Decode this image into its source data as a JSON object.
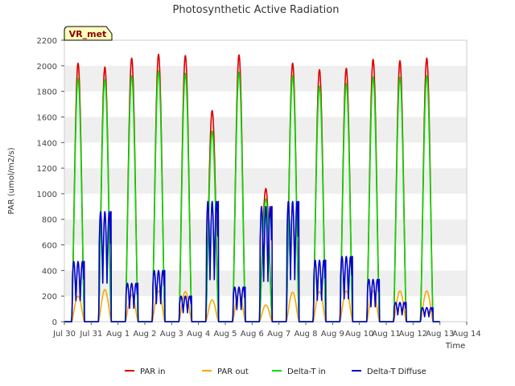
{
  "chart_data": {
    "type": "line",
    "title": "Photosynthetic Active Radiation",
    "badge": "VR_met",
    "xlabel": "Time",
    "ylabel": "PAR (umol/m2/s)",
    "ylim": [
      0,
      2200
    ],
    "yticks": [
      0,
      200,
      400,
      600,
      800,
      1000,
      1200,
      1400,
      1600,
      1800,
      2000,
      2200
    ],
    "xlim": [
      "2024-07-30",
      "2024-08-14"
    ],
    "xticks": [
      "Jul 30",
      "Jul 31",
      "Aug 1",
      "Aug 2",
      "Aug 3",
      "Aug 4",
      "Aug 5",
      "Aug 6",
      "Aug 7",
      "Aug 8",
      "Aug 9",
      "Aug 10",
      "Aug 11",
      "Aug 12",
      "Aug 13",
      "Aug 14"
    ],
    "grid": "horizontal bands",
    "legend_position": "bottom",
    "day_labels": [
      "Jul 30",
      "Jul 31",
      "Aug 1",
      "Aug 2",
      "Aug 3",
      "Aug 4",
      "Aug 5",
      "Aug 6",
      "Aug 7",
      "Aug 8",
      "Aug 9",
      "Aug 10",
      "Aug 11",
      "Aug 12",
      "Aug 13"
    ],
    "series": [
      {
        "name": "PAR in",
        "color": "#dd0000",
        "daily_peak": [
          2020,
          1990,
          2060,
          2090,
          2080,
          1650,
          2085,
          1040,
          2020,
          1970,
          1980,
          2050,
          2040,
          2060,
          0
        ]
      },
      {
        "name": "PAR out",
        "color": "#ffa500",
        "daily_peak": [
          200,
          250,
          210,
          240,
          235,
          170,
          235,
          130,
          230,
          235,
          240,
          240,
          240,
          240,
          0
        ]
      },
      {
        "name": "Delta-T in",
        "color": "#00dd00",
        "daily_peak": [
          1900,
          1890,
          1920,
          1960,
          1940,
          1490,
          1950,
          960,
          1920,
          1840,
          1860,
          1910,
          1910,
          1920,
          0
        ]
      },
      {
        "name": "Delta-T Diffuse",
        "color": "#0000cc",
        "daily_peak": [
          470,
          860,
          300,
          400,
          200,
          940,
          270,
          900,
          940,
          480,
          510,
          330,
          150,
          110,
          0
        ]
      }
    ]
  }
}
